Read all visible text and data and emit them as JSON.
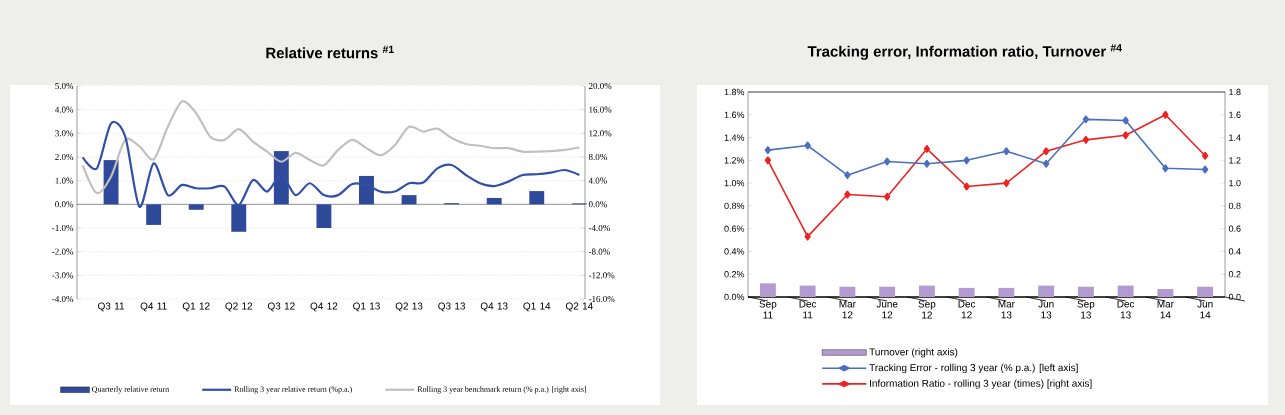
{
  "chart_data": [
    {
      "type": "bar",
      "title": "Relative returns $^{#1}$",
      "categories": [
        null,
        null,
        "Q3 11",
        null,
        null,
        "Q4 11",
        null,
        null,
        "Q1 12",
        null,
        null,
        "Q2 12",
        null,
        null,
        "Q3 12",
        null,
        null,
        "Q4 12",
        null,
        null,
        "Q1 13",
        null,
        null,
        "Q2 13",
        null,
        null,
        "Q3 13",
        null,
        null,
        "Q4 13",
        null,
        null,
        "Q1 14",
        null,
        null,
        "Q2 14"
      ],
      "ylim": [
        -4,
        5
      ],
      "yticks": [
        {
          "value": -4,
          "label": "-4.0%"
        },
        {
          "value": -3,
          "label": "-3.0%"
        },
        {
          "value": -2,
          "label": "-2.0%"
        },
        {
          "value": -1,
          "label": "-1.0%"
        },
        {
          "value": 0,
          "label": "0.0%"
        },
        {
          "value": 1,
          "label": "1.0%"
        },
        {
          "value": 2,
          "label": "2.0%"
        },
        {
          "value": 3,
          "label": "3.0%"
        },
        {
          "value": 4,
          "label": "4.0%"
        },
        {
          "value": 5,
          "label": "5.0%"
        }
      ],
      "y2lim": [
        -16,
        20
      ],
      "y2ticks": [
        {
          "value": -16,
          "label": "-16.0%"
        },
        {
          "value": -12,
          "label": "-12.0%"
        },
        {
          "value": -8,
          "label": "-8.0%"
        },
        {
          "value": -4,
          "label": "-4.0%"
        },
        {
          "value": 0,
          "label": "0.0%"
        },
        {
          "value": 4,
          "label": "4.0%"
        },
        {
          "value": 8,
          "label": "8.0%"
        },
        {
          "value": 12,
          "label": "12.0%"
        },
        {
          "value": 16,
          "label": "16.0%"
        },
        {
          "value": 20,
          "label": "20.0%"
        }
      ],
      "grid": "y",
      "legend": "bottom",
      "series": [
        {
          "name": "Quarterly relative return",
          "type": "bar",
          "color": "#2f4a9a",
          "values": [
            null,
            null,
            1.87,
            null,
            null,
            -0.87,
            null,
            null,
            -0.23,
            null,
            null,
            -1.16,
            null,
            null,
            2.25,
            null,
            null,
            -1.0,
            null,
            null,
            1.2,
            null,
            null,
            0.39,
            null,
            null,
            0.05,
            null,
            null,
            0.27,
            null,
            null,
            0.56,
            null,
            null,
            0.04
          ]
        },
        {
          "name": "Rolling 3 year relative return (%p.a.)",
          "type": "line",
          "color": "#2f4fa8",
          "values": [
            1.99,
            1.52,
            3.42,
            2.86,
            -0.1,
            1.73,
            0.39,
            0.82,
            0.68,
            0.68,
            0.75,
            -0.03,
            1.03,
            0.54,
            1.24,
            0.39,
            0.89,
            0.39,
            0.39,
            0.86,
            0.82,
            0.54,
            0.54,
            0.89,
            0.92,
            1.52,
            1.66,
            1.24,
            0.89,
            0.77,
            0.96,
            1.24,
            1.27,
            1.34,
            1.45,
            1.24
          ]
        },
        {
          "name": "Rolling 3 year benchmark return (% p.a.) [right axis]",
          "type": "line",
          "axis": "y2",
          "color": "#c0c0c0",
          "values": [
            6.6,
            1.9,
            4.7,
            10.9,
            9.8,
            7.6,
            13.1,
            17.4,
            15.4,
            11.4,
            10.9,
            12.7,
            10.6,
            8.9,
            7.2,
            8.7,
            7.5,
            6.6,
            9.2,
            10.9,
            9.5,
            8.3,
            10.0,
            13.1,
            12.3,
            12.8,
            11.2,
            10.2,
            9.9,
            9.5,
            9.5,
            8.9,
            8.9,
            9.0,
            9.2,
            9.6
          ]
        }
      ]
    },
    {
      "type": "line",
      "title": "Tracking error, Information ratio, Turnover $^{#4}$",
      "categories": [
        "Sep 11",
        "Dec 11",
        "Mar 12",
        "June 12",
        "Sep 12",
        "Dec 12",
        "Mar 13",
        "Jun 13",
        "Sep 13",
        "Dec 13",
        "Mar 14",
        "Jun 14"
      ],
      "ylim": [
        0,
        1.8
      ],
      "yticks": [
        {
          "value": 0,
          "label": "0.0%"
        },
        {
          "value": 0.2,
          "label": "0.2%"
        },
        {
          "value": 0.4,
          "label": "0.4%"
        },
        {
          "value": 0.6,
          "label": "0.6%"
        },
        {
          "value": 0.8,
          "label": "0.8%"
        },
        {
          "value": 1.0,
          "label": "1.0%"
        },
        {
          "value": 1.2,
          "label": "1.2%"
        },
        {
          "value": 1.4,
          "label": "1.4%"
        },
        {
          "value": 1.6,
          "label": "1.6%"
        },
        {
          "value": 1.8,
          "label": "1.8%"
        }
      ],
      "y2lim": [
        0,
        1.8
      ],
      "y2ticks": [
        {
          "value": 0,
          "label": "0.0"
        },
        {
          "value": 0.2,
          "label": "0.2"
        },
        {
          "value": 0.4,
          "label": "0.4"
        },
        {
          "value": 0.6,
          "label": "0.6"
        },
        {
          "value": 0.8,
          "label": "0.8"
        },
        {
          "value": 1.0,
          "label": "1.0"
        },
        {
          "value": 1.2,
          "label": "1.2"
        },
        {
          "value": 1.4,
          "label": "1.4"
        },
        {
          "value": 1.6,
          "label": "1.6"
        },
        {
          "value": 1.8,
          "label": "1.8"
        }
      ],
      "legend": "bottom",
      "marker": "diamond",
      "series": [
        {
          "name": "Turnover (right axis)",
          "type": "bar",
          "axis": "y2",
          "color": "#b39ad0",
          "values": [
            0.12,
            0.1,
            0.09,
            0.09,
            0.1,
            0.08,
            0.08,
            0.1,
            0.09,
            0.1,
            0.07,
            0.09
          ]
        },
        {
          "name": "Tracking Error - rolling 3 year (% p.a.) [left axis]",
          "type": "line",
          "color": "#4a6fc0",
          "values": [
            1.29,
            1.33,
            1.07,
            1.19,
            1.17,
            1.2,
            1.28,
            1.17,
            1.56,
            1.55,
            1.13,
            1.12
          ]
        },
        {
          "name": "Information Ratio - rolling 3 year (times) [right axis]",
          "type": "line",
          "axis": "y2",
          "color": "#ee2222",
          "values": [
            1.2,
            0.53,
            0.9,
            0.88,
            1.3,
            0.97,
            1.0,
            1.28,
            1.38,
            1.42,
            1.6,
            1.24
          ]
        }
      ]
    }
  ]
}
